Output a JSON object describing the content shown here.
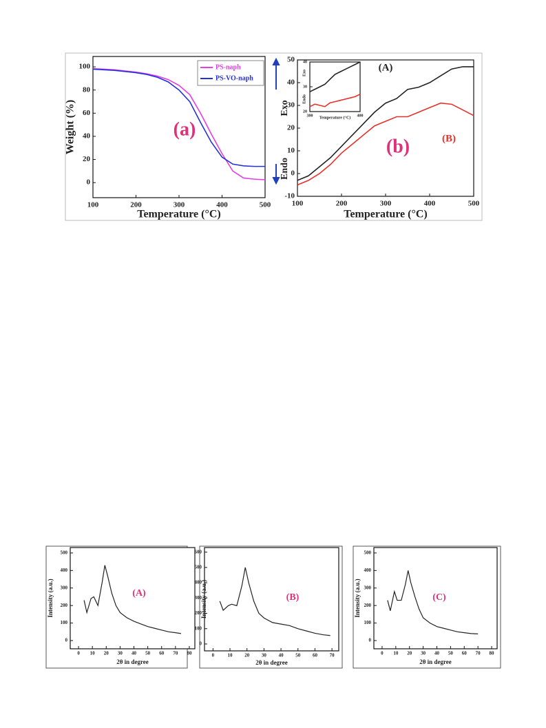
{
  "chart_data": [
    {
      "type": "line",
      "xlabel": "Temperature (°C)",
      "ylabel": "Weight (%)",
      "x": [
        100,
        125,
        150,
        175,
        200,
        225,
        250,
        275,
        300,
        325,
        350,
        375,
        400,
        425,
        450,
        475,
        500
      ],
      "series": [
        {
          "name": "PS-naph",
          "color": "#e63ce6",
          "values": [
            98.5,
            98,
            97.5,
            96.5,
            95.5,
            94,
            92,
            89,
            84,
            76,
            60,
            42,
            25,
            10,
            4,
            3,
            2.5
          ]
        },
        {
          "name": "PS-VO-naph",
          "color": "#2430d8",
          "values": [
            98,
            97.5,
            97,
            96,
            95,
            93.5,
            91,
            87,
            80,
            70,
            52,
            35,
            22,
            16,
            14.5,
            14,
            14
          ]
        }
      ],
      "xlim": [
        100,
        500
      ],
      "xticks": [
        100,
        200,
        300,
        400,
        500
      ],
      "ylim": [
        -13,
        109
      ],
      "yticks": [
        0,
        20,
        40,
        60,
        80,
        100
      ],
      "legend": "upper right",
      "annotations": [
        {
          "text": "(a)",
          "color": "#e0307a"
        }
      ]
    },
    {
      "type": "line",
      "xlabel": "Temperature (°C)",
      "x": [
        100,
        125,
        150,
        175,
        200,
        225,
        250,
        275,
        300,
        325,
        350,
        375,
        400,
        425,
        450,
        475,
        500
      ],
      "series": [
        {
          "name": "(A)",
          "color": "#222222",
          "values": [
            -3,
            -1,
            3,
            7,
            12,
            17,
            22,
            27,
            31,
            33,
            37,
            38,
            40,
            43,
            46,
            47,
            47
          ]
        },
        {
          "name": "(B)",
          "color": "#e8302a",
          "values": [
            -5,
            -3,
            0,
            4,
            9,
            13,
            17,
            21,
            23,
            25,
            25,
            27,
            29,
            31,
            30.5,
            28,
            25.5
          ]
        }
      ],
      "xlim": [
        100,
        500
      ],
      "xticks": [
        100,
        200,
        300,
        400,
        500
      ],
      "ylim": [
        -10,
        50
      ],
      "yticks": [
        -10,
        0,
        10,
        20,
        30,
        40,
        50
      ],
      "annotations": [
        {
          "text": "(b)",
          "color": "#e0307a"
        },
        {
          "text": "(A)",
          "color": "#222222"
        },
        {
          "text": "(B)",
          "color": "#e8302a"
        },
        {
          "text": "Exo",
          "color": "#222222"
        },
        {
          "text": "Endo",
          "color": "#222222"
        }
      ]
    },
    {
      "type": "line",
      "xlabel": "Temperature (°C)",
      "x": [
        300,
        310,
        320,
        330,
        340,
        350,
        360,
        370,
        380,
        390,
        400
      ],
      "series": [
        {
          "name": "(A)",
          "color": "#222222",
          "values": [
            28,
            29,
            30,
            31,
            33,
            35,
            36,
            37,
            38,
            39,
            40
          ]
        },
        {
          "name": "(B)",
          "color": "#e8302a",
          "values": [
            22,
            23,
            22.5,
            22,
            23.5,
            24,
            24.5,
            25,
            25.5,
            26,
            27
          ]
        }
      ],
      "xlim": [
        300,
        400
      ],
      "xticks": [
        300,
        400
      ],
      "ylim": [
        20,
        40
      ],
      "yticks": [
        20,
        30,
        40
      ],
      "annotations": [
        {
          "text": "Exo",
          "color": "#222222"
        },
        {
          "text": "Endo",
          "color": "#222222"
        }
      ]
    },
    {
      "type": "line",
      "xlabel": "2θ in degree",
      "ylabel": "Intensity (a.u.)",
      "x": [
        4,
        6,
        9,
        11,
        14,
        17,
        19,
        21,
        24,
        27,
        30,
        35,
        40,
        45,
        50,
        55,
        60,
        65,
        70,
        74
      ],
      "series": [
        {
          "name": "(A)",
          "color": "#222222",
          "values": [
            230,
            160,
            240,
            250,
            200,
            330,
            430,
            370,
            270,
            200,
            160,
            130,
            110,
            95,
            80,
            70,
            60,
            50,
            45,
            40
          ]
        }
      ],
      "xlim": [
        -6,
        84
      ],
      "xticks": [
        0,
        10,
        20,
        30,
        40,
        50,
        60,
        70,
        80
      ],
      "ylim": [
        -47,
        531
      ],
      "yticks": [
        0,
        100,
        200,
        300,
        400,
        500
      ],
      "annotations": [
        {
          "text": "(A)",
          "color": "#e0307a"
        }
      ]
    },
    {
      "type": "line",
      "xlabel": "2θ in degree",
      "ylabel": "Intensity (a.u.)",
      "x": [
        4,
        6,
        9,
        11,
        14,
        17,
        19,
        21,
        24,
        27,
        30,
        35,
        40,
        45,
        50,
        55,
        60,
        65,
        69
      ],
      "series": [
        {
          "name": "(B)",
          "color": "#222222",
          "values": [
            280,
            220,
            250,
            260,
            250,
            380,
            500,
            400,
            280,
            200,
            170,
            140,
            130,
            120,
            100,
            85,
            70,
            60,
            55
          ]
        }
      ],
      "xlim": [
        -5,
        74
      ],
      "xticks": [
        0,
        10,
        20,
        30,
        40,
        50,
        60,
        70
      ],
      "ylim": [
        -45,
        630
      ],
      "yticks": [
        0,
        100,
        200,
        300,
        400,
        500,
        600
      ],
      "annotations": [
        {
          "text": "(B)",
          "color": "#e0307a"
        }
      ]
    },
    {
      "type": "line",
      "xlabel": "2θ in degree",
      "ylabel": "Intensity (a.u.)",
      "x": [
        4,
        6,
        9,
        11,
        14,
        17,
        19,
        21,
        24,
        27,
        30,
        35,
        40,
        45,
        50,
        55,
        60,
        65,
        70
      ],
      "series": [
        {
          "name": "(C)",
          "color": "#222222",
          "values": [
            230,
            170,
            280,
            230,
            230,
            320,
            400,
            330,
            250,
            180,
            130,
            100,
            80,
            70,
            60,
            50,
            45,
            40,
            38
          ]
        }
      ],
      "xlim": [
        -6,
        84
      ],
      "xticks": [
        0,
        10,
        20,
        30,
        40,
        50,
        60,
        70,
        80
      ],
      "ylim": [
        -47,
        531
      ],
      "yticks": [
        0,
        100,
        200,
        300,
        400,
        500
      ],
      "annotations": [
        {
          "text": "(C)",
          "color": "#e0307a"
        }
      ]
    }
  ]
}
